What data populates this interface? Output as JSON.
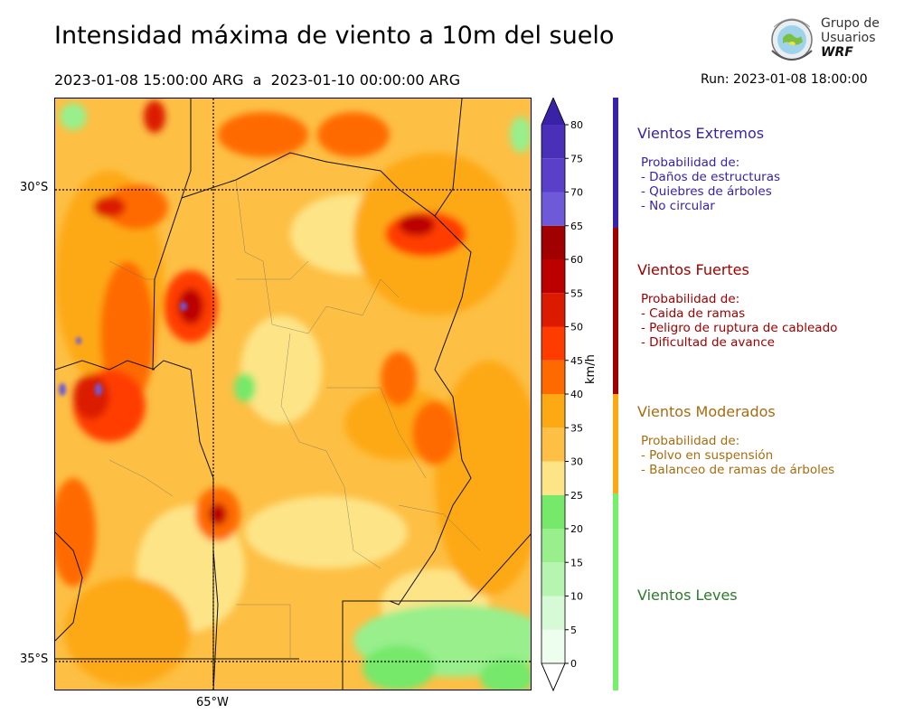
{
  "header": {
    "title": "Intensidad máxima de viento a 10m del suelo",
    "period": "2023-01-08 15:00:00 ARG  a  2023-01-10 00:00:00 ARG",
    "run": "Run: 2023-01-08 18:00:00"
  },
  "logo": {
    "line1": "Grupo de",
    "line2": "Usuarios",
    "line3": "WRF"
  },
  "map": {
    "lat_labels": [
      "30°S",
      "35°S"
    ],
    "lon_labels": [
      "65°W"
    ]
  },
  "colorbar": {
    "unit": "km/h",
    "ticks": [
      "0",
      "5",
      "10",
      "15",
      "20",
      "25",
      "30",
      "35",
      "40",
      "45",
      "50",
      "55",
      "60",
      "65",
      "70",
      "75",
      "80"
    ],
    "colors": [
      "#eefeee",
      "#d6fad6",
      "#b6f5b0",
      "#98ef8c",
      "#76e86a",
      "#fde487",
      "#fdbf44",
      "#fda914",
      "#ff6a00",
      "#ff3c00",
      "#dc1a00",
      "#bc0000",
      "#a00000",
      "#6e5ad8",
      "#5a40c8",
      "#4a30b8",
      "#3a22a8"
    ]
  },
  "categories": [
    {
      "title": "Vientos Extremos",
      "color": "#3a22a8",
      "desc": [
        "Probabilidad de:",
        "- Daños de estructuras",
        "- Quiebres de árboles",
        "- No circular"
      ]
    },
    {
      "title": "Vientos Fuertes",
      "color": "#a00000",
      "desc": [
        "Probabilidad de:",
        "- Caida de ramas",
        "- Peligro de ruptura de cableado",
        "- Dificultad de avance"
      ]
    },
    {
      "title": "Vientos Moderados",
      "color": "#a86c10",
      "bar_color": "#fda914",
      "desc": [
        "Probabilidad de:",
        "- Polvo en suspensión",
        "- Balanceo de ramas de árboles"
      ]
    },
    {
      "title": "Vientos Leves",
      "color": "#2c7a2c",
      "bar_color": "#76f06a",
      "desc": []
    }
  ]
}
